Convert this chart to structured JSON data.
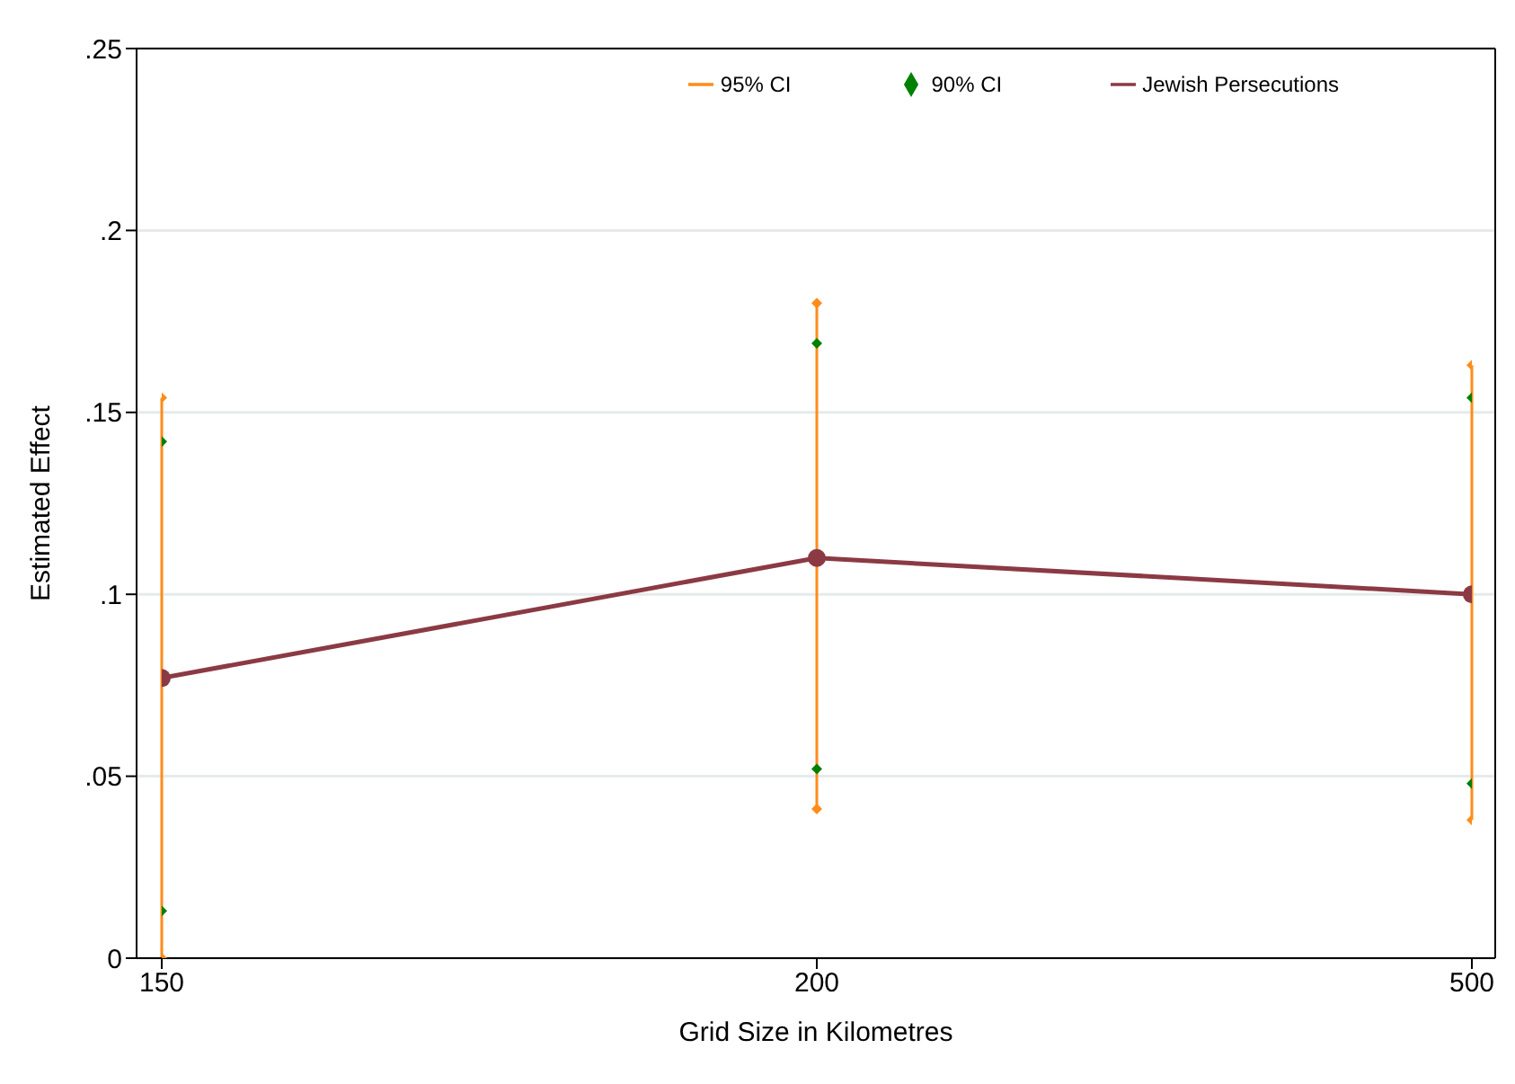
{
  "chart_data": {
    "type": "line",
    "xlabel": "Grid Size in Kilometres",
    "ylabel": "Estimated Effect",
    "categories": [
      "150",
      "200",
      "500"
    ],
    "series": [
      {
        "name": "Jewish Persecutions",
        "color": "#8b3a44",
        "marker": "circle",
        "line_style": "solid",
        "values": [
          0.077,
          0.11,
          0.1
        ]
      },
      {
        "name": "95% CI",
        "type": "scatter",
        "color": "#ff8c1a",
        "marker": "diamond",
        "x": [
          "150",
          "150",
          "200",
          "200",
          "500",
          "500"
        ],
        "values": [
          0.0,
          0.154,
          0.041,
          0.18,
          0.038,
          0.163
        ],
        "errors": [
          null,
          [
            0.0,
            0.154
          ],
          null,
          [
            0.041,
            0.18
          ],
          null,
          [
            0.038,
            0.163
          ]
        ]
      },
      {
        "name": "90% CI",
        "type": "scatter",
        "color": "#008000",
        "marker": "diamond",
        "x": [
          "150",
          "150",
          "200",
          "200",
          "500",
          "500"
        ],
        "values": [
          0.013,
          0.142,
          0.052,
          0.169,
          0.048,
          0.154
        ]
      }
    ],
    "ylim": [
      0,
      0.25
    ],
    "yticks": [
      {
        "value": 0,
        "label": "0"
      },
      {
        "value": 0.05,
        "label": ".05"
      },
      {
        "value": 0.1,
        "label": ".1"
      },
      {
        "value": 0.15,
        "label": ".15"
      },
      {
        "value": 0.2,
        "label": ".2"
      },
      {
        "value": 0.25,
        "label": ".25"
      }
    ],
    "grid": "y",
    "legend": "top"
  }
}
